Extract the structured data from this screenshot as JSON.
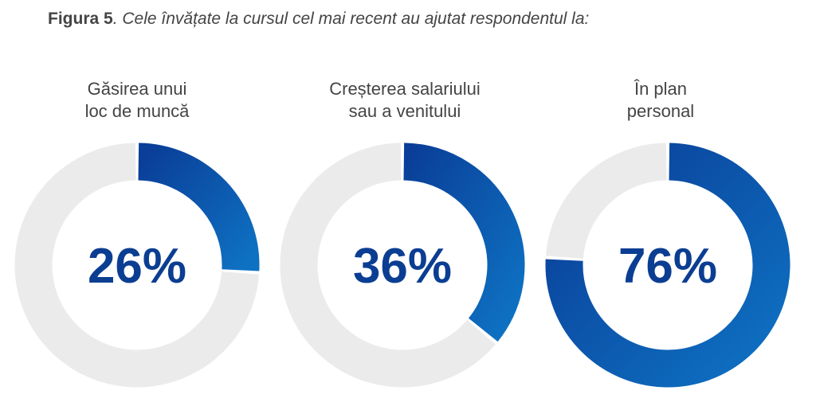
{
  "title": {
    "prefix": "Figura 5",
    "text": ". Cele învățate la cursul cel mai recent au ajutat respondentul la:"
  },
  "chart_data": [
    {
      "type": "pie",
      "subtype": "donut",
      "title_lines": [
        "Găsirea unui",
        "loc de muncă"
      ],
      "value": 26,
      "label": "26%"
    },
    {
      "type": "pie",
      "subtype": "donut",
      "title_lines": [
        "Creșterea salariului",
        "sau a venitului"
      ],
      "value": 36,
      "label": "36%"
    },
    {
      "type": "pie",
      "subtype": "donut",
      "title_lines": [
        "În plan",
        "personal"
      ],
      "value": 76,
      "label": "76%"
    }
  ],
  "colors": {
    "filled_start": "#0a3e98",
    "filled_end": "#0e71c2",
    "remaining": "#ebebeb",
    "value_text": "#0b3e92"
  }
}
